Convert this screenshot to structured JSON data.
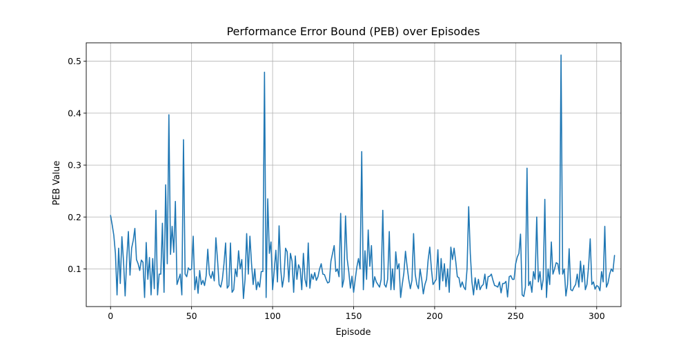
{
  "chart_data": {
    "type": "line",
    "title": "Performance Error Bound (PEB) over Episodes",
    "xlabel": "Episode",
    "ylabel": "PEB Value",
    "xlim": [
      -15,
      315
    ],
    "ylim": [
      0.0275,
      0.5355
    ],
    "grid": true,
    "x_ticks": [
      0,
      50,
      100,
      150,
      200,
      250,
      300
    ],
    "y_ticks": [
      0.1,
      0.2,
      0.3,
      0.4,
      0.5
    ],
    "x_tick_labels": [
      "0",
      "50",
      "100",
      "150",
      "200",
      "250",
      "300"
    ],
    "y_tick_labels": [
      "0.1",
      "0.2",
      "0.3",
      "0.4",
      "0.5"
    ],
    "series": [
      {
        "name": "PEB",
        "color": "#1f77b4",
        "x_start": 0,
        "x_step": 1,
        "values": [
          0.203,
          0.185,
          0.165,
          0.13,
          0.05,
          0.14,
          0.072,
          0.162,
          0.115,
          0.048,
          0.12,
          0.172,
          0.088,
          0.14,
          0.155,
          0.178,
          0.118,
          0.11,
          0.097,
          0.117,
          0.113,
          0.045,
          0.151,
          0.08,
          0.122,
          0.05,
          0.12,
          0.062,
          0.213,
          0.05,
          0.09,
          0.09,
          0.188,
          0.055,
          0.262,
          0.11,
          0.397,
          0.128,
          0.182,
          0.132,
          0.23,
          0.07,
          0.08,
          0.09,
          0.05,
          0.349,
          0.09,
          0.085,
          0.102,
          0.098,
          0.1,
          0.163,
          0.06,
          0.085,
          0.053,
          0.097,
          0.07,
          0.078,
          0.068,
          0.087,
          0.138,
          0.09,
          0.082,
          0.095,
          0.077,
          0.16,
          0.118,
          0.07,
          0.065,
          0.08,
          0.11,
          0.15,
          0.063,
          0.068,
          0.15,
          0.055,
          0.06,
          0.1,
          0.085,
          0.135,
          0.1,
          0.118,
          0.043,
          0.08,
          0.168,
          0.09,
          0.163,
          0.11,
          0.07,
          0.1,
          0.06,
          0.075,
          0.065,
          0.095,
          0.095,
          0.479,
          0.045,
          0.235,
          0.13,
          0.152,
          0.06,
          0.097,
          0.136,
          0.075,
          0.183,
          0.1,
          0.065,
          0.085,
          0.14,
          0.133,
          0.075,
          0.13,
          0.115,
          0.055,
          0.125,
          0.08,
          0.108,
          0.1,
          0.06,
          0.13,
          0.08,
          0.066,
          0.15,
          0.063,
          0.09,
          0.08,
          0.093,
          0.078,
          0.085,
          0.1,
          0.11,
          0.09,
          0.089,
          0.08,
          0.073,
          0.075,
          0.115,
          0.13,
          0.145,
          0.095,
          0.1,
          0.085,
          0.207,
          0.065,
          0.08,
          0.202,
          0.12,
          0.095,
          0.063,
          0.086,
          0.055,
          0.08,
          0.104,
          0.12,
          0.1,
          0.326,
          0.06,
          0.135,
          0.08,
          0.175,
          0.105,
          0.145,
          0.065,
          0.085,
          0.075,
          0.07,
          0.065,
          0.08,
          0.213,
          0.07,
          0.065,
          0.08,
          0.172,
          0.06,
          0.1,
          0.06,
          0.133,
          0.1,
          0.11,
          0.045,
          0.07,
          0.092,
          0.134,
          0.105,
          0.08,
          0.062,
          0.078,
          0.168,
          0.09,
          0.07,
          0.062,
          0.1,
          0.08,
          0.052,
          0.07,
          0.08,
          0.118,
          0.142,
          0.1,
          0.07,
          0.075,
          0.08,
          0.137,
          0.06,
          0.12,
          0.077,
          0.11,
          0.066,
          0.1,
          0.055,
          0.142,
          0.118,
          0.14,
          0.115,
          0.085,
          0.083,
          0.065,
          0.075,
          0.065,
          0.06,
          0.1,
          0.22,
          0.13,
          0.075,
          0.05,
          0.083,
          0.06,
          0.08,
          0.06,
          0.067,
          0.07,
          0.09,
          0.062,
          0.085,
          0.086,
          0.09,
          0.078,
          0.068,
          0.067,
          0.065,
          0.075,
          0.054,
          0.072,
          0.072,
          0.076,
          0.046,
          0.085,
          0.087,
          0.08,
          0.08,
          0.11,
          0.123,
          0.13,
          0.167,
          0.05,
          0.047,
          0.065,
          0.294,
          0.068,
          0.076,
          0.055,
          0.095,
          0.08,
          0.2,
          0.075,
          0.095,
          0.06,
          0.08,
          0.234,
          0.045,
          0.1,
          0.07,
          0.152,
          0.09,
          0.1,
          0.112,
          0.11,
          0.09,
          0.512,
          0.09,
          0.1,
          0.048,
          0.07,
          0.139,
          0.06,
          0.058,
          0.065,
          0.07,
          0.09,
          0.065,
          0.115,
          0.075,
          0.107,
          0.06,
          0.07,
          0.105,
          0.158,
          0.07,
          0.075,
          0.061,
          0.068,
          0.066,
          0.058,
          0.095,
          0.075,
          0.182,
          0.065,
          0.073,
          0.09,
          0.1,
          0.095,
          0.126
        ]
      }
    ]
  }
}
